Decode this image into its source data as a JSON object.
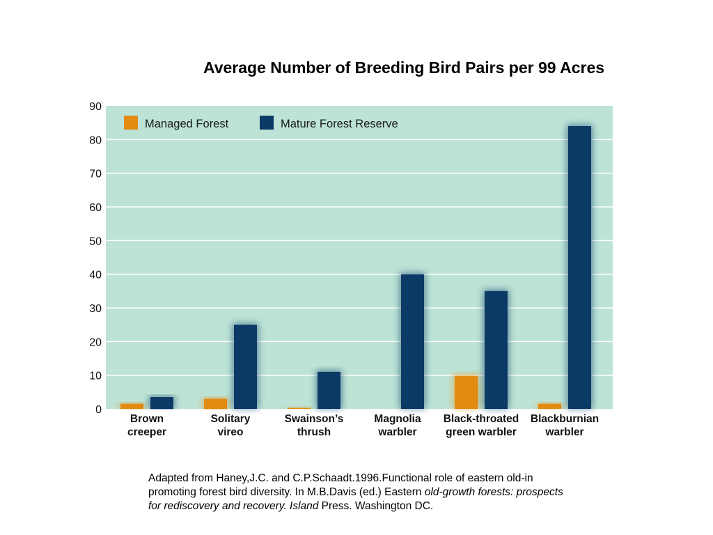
{
  "colors": {
    "plot_background": "#bde3d6",
    "gridline": "#ffffff",
    "managed": "#e38a10",
    "mature": "#0c3a66"
  },
  "chart_data": {
    "type": "bar",
    "title": "Average Number of Breeding Bird Pairs per 99 Acres",
    "xlabel": "",
    "ylabel": "",
    "ylim": [
      0,
      90
    ],
    "yticks": [
      0,
      10,
      20,
      30,
      40,
      50,
      60,
      70,
      80,
      90
    ],
    "grid": true,
    "legend_placement": "top-left",
    "categories": [
      [
        "Brown",
        "creeper"
      ],
      [
        "Solitary",
        "vireo"
      ],
      [
        "Swainson’s",
        "thrush"
      ],
      [
        "Magnolia",
        "warbler"
      ],
      [
        "Black-throated",
        "green  warbler"
      ],
      [
        "Blackburnian",
        "warbler"
      ]
    ],
    "series": [
      {
        "name": "Managed Forest",
        "color": "#e38a10",
        "values": [
          1.5,
          3,
          0.3,
          0,
          9.8,
          1.5
        ]
      },
      {
        "name": "Mature Forest Reserve",
        "color": "#0c3a66",
        "values": [
          3.5,
          25,
          11,
          40,
          35,
          84
        ]
      }
    ]
  },
  "caption": {
    "part1": "Adapted from Haney,J.C. and C.P.Schaadt.1996.Functional role of eastern old-in promoting forest bird diversity. In M.B.Davis (ed.) Eastern ",
    "part2_italic": "old-growth forests: prospects for rediscovery and recovery. Island",
    "part3": " Press. Washington DC."
  }
}
